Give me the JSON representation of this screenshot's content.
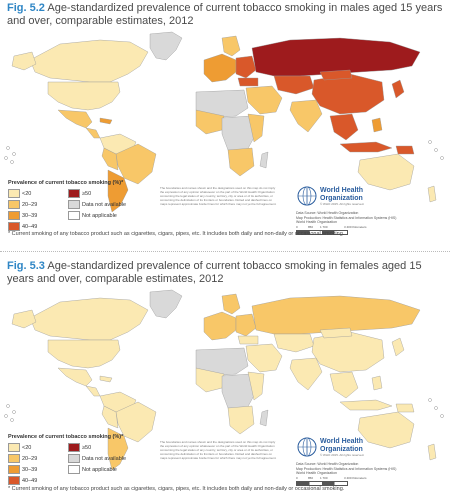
{
  "colors": {
    "lt20": "#fbe9b2",
    "r20_29": "#f8c768",
    "r30_39": "#ee9c33",
    "r40_49": "#d9582a",
    "ge50": "#9e1b1d",
    "not_available": "#d9d9d9",
    "not_applicable": "#ffffff",
    "fignum": "#2f86c5",
    "who_blue": "#2a5d9e"
  },
  "fig1": {
    "fignum": "Fig. 5.2",
    "title": "Age-standardized prevalence of current tobacco smoking in males aged 15 years and over, comparable estimates, 2012",
    "legend_title": "Prevalence of current tobacco smoking (%)*",
    "legend": [
      "<20",
      "20–29",
      "30–39",
      "40–49",
      "≥50",
      "Data not available",
      "Not applicable"
    ],
    "footnote": "* Current smoking of any tobacco product such as cigarettes, cigars, pipes, etc. It includes both daily and non-daily or occasional smoking.",
    "who_name": "World Health Organization",
    "who_copy": "© WHO 2015. All rights reserved.",
    "source_1": "Data Source: World Health Organization",
    "source_2": "Map Production: Health Statistics and Information Systems (HIS)",
    "source_3": "World Health Organization",
    "scale_0": "0",
    "scale_1": "850",
    "scale_2": "1 700",
    "scale_3": "3 400 Kilometers",
    "disclaimer": "The boundaries and names shown and the designations used on this map do not imply the expression of any opinion whatsoever on the part of the World Health Organization concerning the legal status of any country, territory, city or area or of its authorities, or concerning the delimitation of its frontiers or boundaries. Dotted and dashed lines on maps represent approximate border lines for which there may not yet be full agreement."
  },
  "fig2": {
    "fignum": "Fig. 5.3",
    "title": "Age-standardized prevalence of current tobacco smoking in females aged 15 years and over, comparable estimates, 2012",
    "legend_title": "Prevalence of current tobacco smoking (%)*",
    "legend": [
      "<20",
      "20–29",
      "30–39",
      "40–49",
      "≥50",
      "Data not available",
      "Not applicable"
    ],
    "footnote": "* Current smoking of any tobacco product such as cigarettes, cigars, pipes, etc. It includes both daily and non-daily or occasional smoking.",
    "who_name": "World Health Organization",
    "who_copy": "© WHO 2015. All rights reserved.",
    "source_1": "Data Source: World Health Organization",
    "source_2": "Map Production: Health Statistics and Information Systems (HIS)",
    "source_3": "World Health Organization",
    "scale_0": "0",
    "scale_1": "850",
    "scale_2": "1 700",
    "scale_3": "3 400 Kilometers",
    "disclaimer": "The boundaries and names shown and the designations used on this map do not imply the expression of any opinion whatsoever on the part of the World Health Organization concerning the legal status of any country, territory, city or area or of its authorities, or concerning the delimitation of its frontiers or boundaries. Dotted and dashed lines on maps represent approximate border lines for which there may not yet be full agreement."
  }
}
